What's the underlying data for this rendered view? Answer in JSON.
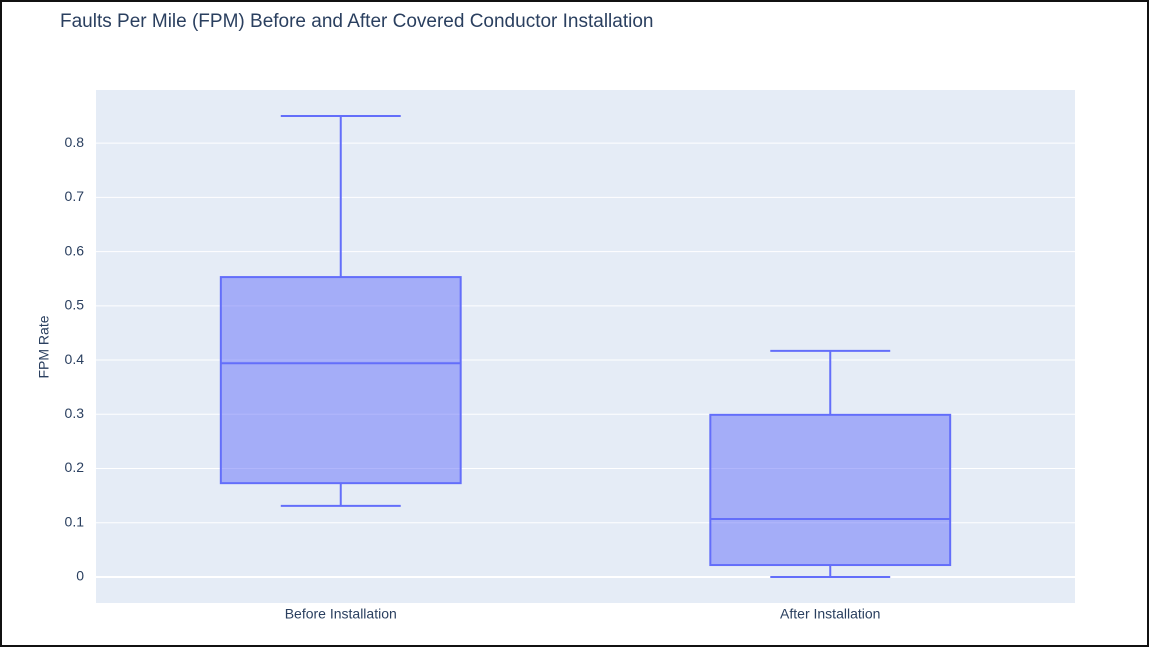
{
  "chart_data": {
    "type": "box",
    "title": "Faults Per Mile (FPM) Before and After Covered Conductor Installation",
    "y_label": "FPM Rate",
    "categories": [
      "Before Installation",
      "After Installation"
    ],
    "min": [
      0.131,
      0
    ],
    "q1": [
      0.173,
      0.022
    ],
    "median": [
      0.394,
      0.107
    ],
    "q3": [
      0.553,
      0.299
    ],
    "max": [
      0.85,
      0.417
    ],
    "color": "#636efa",
    "ylim": [
      -0.048,
      0.898
    ],
    "yticks": [
      0,
      0.1,
      0.2,
      0.3,
      0.4,
      0.5,
      0.6,
      0.7,
      0.8
    ],
    "grid": true
  }
}
